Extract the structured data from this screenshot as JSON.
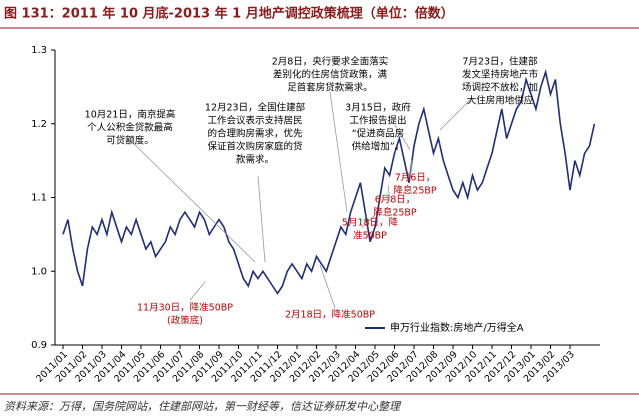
{
  "chart_data": {
    "type": "line",
    "title": "图 131：2011 年 10 月底-2013 年 1 月地产调控政策梳理（单位：倍数）",
    "source": "资料来源：万得，国务院网站，住建部网站，第一财经等，信达证券研发中心整理",
    "categories": [
      "2011/01",
      null,
      null,
      null,
      "2011/02",
      null,
      null,
      null,
      "2011/03",
      null,
      null,
      null,
      "2011/04",
      null,
      null,
      null,
      "2011/05",
      null,
      null,
      null,
      "2011/06",
      null,
      null,
      null,
      "2011/07",
      null,
      null,
      null,
      "2011/08",
      null,
      null,
      null,
      "2011/09",
      null,
      null,
      null,
      "2011/10",
      null,
      null,
      null,
      "2011/11",
      null,
      null,
      null,
      "2011/12",
      null,
      null,
      null,
      "2012/01",
      null,
      null,
      null,
      "2012/02",
      null,
      null,
      null,
      "2012/03",
      null,
      null,
      null,
      "2012/04",
      null,
      null,
      null,
      "2012/05",
      null,
      null,
      null,
      "2012/06",
      null,
      null,
      null,
      "2012/07",
      null,
      null,
      null,
      "2012/08",
      null,
      null,
      null,
      "2012/09",
      null,
      null,
      null,
      "2012/10",
      null,
      null,
      null,
      "2012/11",
      null,
      null,
      null,
      "2012/12",
      null,
      null,
      null,
      "2013/01",
      null,
      null,
      null,
      "2013/02",
      null,
      null,
      null,
      "2013/03",
      null,
      null,
      null,
      null,
      null
    ],
    "series": [
      {
        "name": "申万行业指数:房地产/万得全A",
        "color": "#1f2d7a",
        "values": [
          1.05,
          1.07,
          1.03,
          1.0,
          0.98,
          1.03,
          1.06,
          1.05,
          1.07,
          1.05,
          1.08,
          1.06,
          1.04,
          1.06,
          1.05,
          1.07,
          1.05,
          1.03,
          1.04,
          1.02,
          1.03,
          1.04,
          1.06,
          1.05,
          1.07,
          1.08,
          1.07,
          1.06,
          1.08,
          1.07,
          1.05,
          1.06,
          1.07,
          1.06,
          1.04,
          1.03,
          1.01,
          0.99,
          0.98,
          1.0,
          0.99,
          1.0,
          0.99,
          0.98,
          0.97,
          0.98,
          1.0,
          1.01,
          1.0,
          0.99,
          1.01,
          1.0,
          1.02,
          1.01,
          1.0,
          1.02,
          1.04,
          1.06,
          1.05,
          1.08,
          1.1,
          1.12,
          1.08,
          1.04,
          1.06,
          1.1,
          1.14,
          1.13,
          1.16,
          1.18,
          1.15,
          1.12,
          1.17,
          1.2,
          1.22,
          1.19,
          1.16,
          1.18,
          1.15,
          1.13,
          1.11,
          1.1,
          1.12,
          1.1,
          1.13,
          1.11,
          1.12,
          1.14,
          1.16,
          1.19,
          1.22,
          1.18,
          1.2,
          1.22,
          1.23,
          1.26,
          1.24,
          1.22,
          1.25,
          1.27,
          1.24,
          1.26,
          1.2,
          1.16,
          1.11,
          1.15,
          1.13,
          1.16,
          1.17,
          1.2
        ]
      }
    ],
    "ylim": [
      0.9,
      1.3
    ],
    "yticks": [
      0.9,
      {
        "value": 1,
        "label": "1.0"
      },
      1.1,
      1.2,
      1.3
    ],
    "legend": "lower right",
    "annotations": [
      {
        "color": "#000000",
        "lines": [
          "10月21日，南京提高",
          "个人公积金贷款最高",
          "可贷额度。"
        ]
      },
      {
        "color": "#000000",
        "lines": [
          "12月23日，全国住建部",
          "工作会议表示支持居民",
          "的合理购房需求，优先",
          "保证首次购房家庭的贷",
          "款需求。"
        ]
      },
      {
        "color": "#000000",
        "lines": [
          "2月8日，央行要求全面落实",
          "差别化的住房信贷政策，满",
          "足首套房贷款需求。"
        ]
      },
      {
        "color": "#000000",
        "lines": [
          "3月15日，政府",
          "工作报告提出",
          "“促进商品房",
          "供给增加”。"
        ]
      },
      {
        "color": "#000000",
        "lines": [
          "7月23日，住建部",
          "发文坚持房地产市",
          "场调控不放松，加",
          "大住房用地供应"
        ]
      },
      {
        "color": "#c00000",
        "lines": [
          "11月30日，降准50BP",
          "(政策底)"
        ]
      },
      {
        "color": "#c00000",
        "lines": [
          "2月18日，降准50BP"
        ]
      },
      {
        "color": "#c00000",
        "lines": [
          "5月18日，降",
          "准50BP"
        ]
      },
      {
        "color": "#c00000",
        "lines": [
          "6月8日，",
          "降息25BP"
        ]
      },
      {
        "color": "#c00000",
        "lines": [
          "7月6日，",
          "降息25BP"
        ]
      }
    ]
  }
}
